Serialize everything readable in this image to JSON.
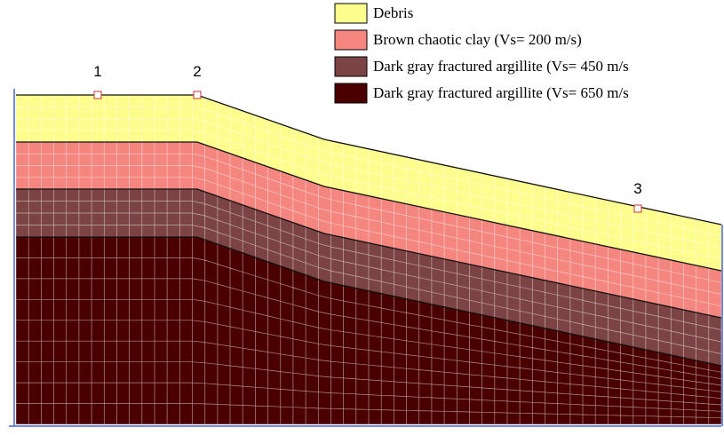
{
  "legend": [
    "Debris",
    "Brown chaotic clay (Vs= 200 m/s)",
    "Dark gray fractured argillite (Vs= 450 m/s",
    "Dark gray fractured argillite (Vs= 650 m/s"
  ],
  "points": [
    "1",
    "2",
    "3"
  ]
}
